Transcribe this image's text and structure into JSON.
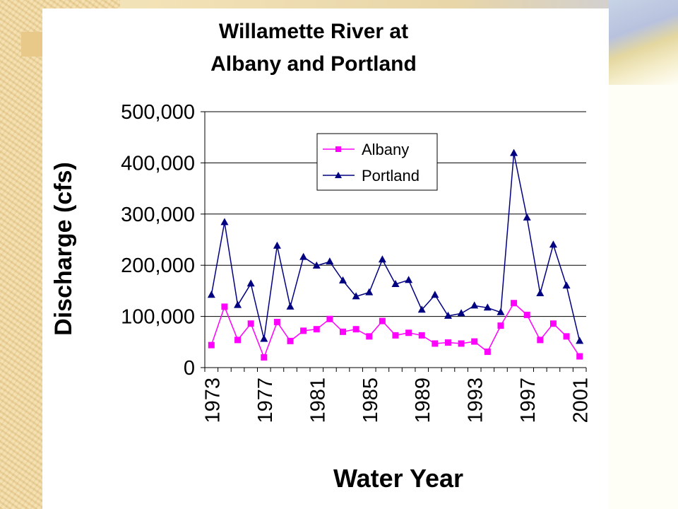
{
  "chart_data": {
    "type": "line",
    "title_lines": [
      "Willamette River at",
      "Albany and Portland"
    ],
    "xlabel": "Water Year",
    "ylabel": "Discharge (cfs)",
    "ylim": [
      0,
      500000
    ],
    "yticks": [
      "0",
      "100,000",
      "200,000",
      "300,000",
      "400,000",
      "500,000"
    ],
    "xtick_labels": [
      "1973",
      "1977",
      "1981",
      "1985",
      "1989",
      "1993",
      "1997",
      "2001"
    ],
    "x": [
      1973,
      1974,
      1975,
      1976,
      1977,
      1978,
      1979,
      1980,
      1981,
      1982,
      1983,
      1984,
      1985,
      1986,
      1987,
      1988,
      1989,
      1990,
      1991,
      1992,
      1993,
      1994,
      1995,
      1996,
      1997,
      1998,
      1999,
      2000,
      2001
    ],
    "grid": "horizontal",
    "legend_position": "top-right",
    "series": [
      {
        "name": "Albany",
        "color": "#ff00ff",
        "marker": "square",
        "values": [
          44000,
          119000,
          54000,
          86000,
          20000,
          89000,
          52000,
          72000,
          75000,
          95000,
          70000,
          75000,
          61000,
          91000,
          63000,
          68000,
          63000,
          47000,
          49000,
          47000,
          51000,
          31000,
          82000,
          126000,
          103000,
          54000,
          86000,
          61000,
          22000
        ]
      },
      {
        "name": "Portland",
        "color": "#000080",
        "marker": "triangle",
        "values": [
          142000,
          284000,
          122000,
          164000,
          56000,
          238000,
          119000,
          216000,
          199000,
          207000,
          170000,
          139000,
          147000,
          211000,
          163000,
          171000,
          113000,
          142000,
          101000,
          106000,
          121000,
          117000,
          108000,
          419000,
          293000,
          145000,
          240000,
          160000,
          52000
        ]
      }
    ]
  }
}
